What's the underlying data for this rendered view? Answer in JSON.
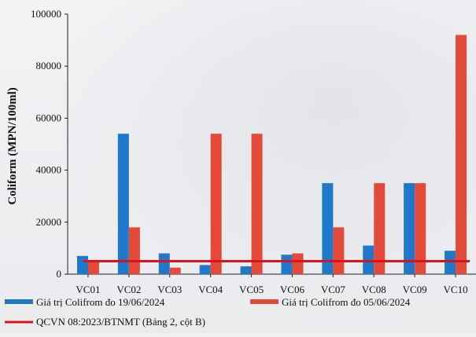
{
  "chart_data": {
    "type": "bar",
    "title": "",
    "xlabel": "",
    "ylabel": "Coliform (MPN/100ml)",
    "ylim": [
      0,
      100000
    ],
    "yticks": [
      0,
      20000,
      40000,
      60000,
      80000,
      100000
    ],
    "grid": false,
    "legend_position": "bottom",
    "categories": [
      "VC01",
      "VC02",
      "VC03",
      "VC04",
      "VC05",
      "VC06",
      "VC07",
      "VC08",
      "VC09",
      "VC10"
    ],
    "series": [
      {
        "name": "Giá trị Colifrom đo 19/06/2024",
        "color": "#1f78c8",
        "values": [
          7000,
          54000,
          8000,
          3500,
          3000,
          7500,
          35000,
          11000,
          35000,
          9000
        ]
      },
      {
        "name": "Giá trị Colifrom đo 05/06/2024",
        "color": "#e34a3a",
        "values": [
          5000,
          18000,
          2500,
          54000,
          54000,
          8000,
          18000,
          35000,
          35000,
          92000
        ]
      }
    ],
    "reference_line": {
      "name": "QCVN 08:2023/BTNMT (Bảng 2, cột B)",
      "value": 5000,
      "color": "#d9141f"
    }
  }
}
